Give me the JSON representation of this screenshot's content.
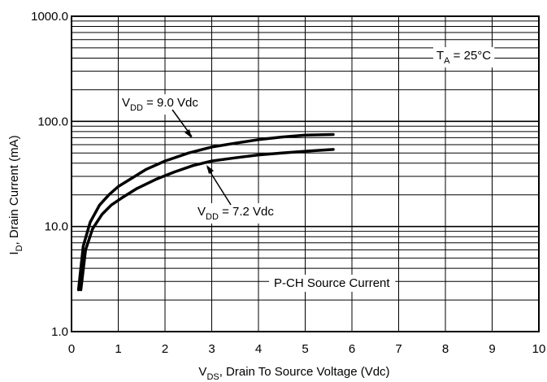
{
  "chart_data": {
    "type": "line",
    "title": "",
    "xlabel": {
      "main": "V",
      "sub": "DS",
      "rest": ", Drain To Source Voltage (Vdc)"
    },
    "ylabel": {
      "main": "I",
      "sub": "D",
      "rest": ", Drain Current (mA)"
    },
    "xlim": [
      0,
      10
    ],
    "ylim": [
      1,
      1000
    ],
    "y_scale": "log",
    "grid": true,
    "x_ticks": [
      "0",
      "1",
      "2",
      "3",
      "4",
      "5",
      "6",
      "7",
      "8",
      "9",
      "10"
    ],
    "y_ticks": [
      {
        "value": 1,
        "label": "1.0"
      },
      {
        "value": 10,
        "label": "10.0"
      },
      {
        "value": 100,
        "label": "100.0"
      },
      {
        "value": 1000,
        "label": "1000.0"
      }
    ],
    "series": [
      {
        "name": "V_DD = 9.0 Vdc",
        "x": [
          0.15,
          0.25,
          0.4,
          0.6,
          0.8,
          1.0,
          1.3,
          1.6,
          2.0,
          2.5,
          3.0,
          3.5,
          4.0,
          4.5,
          5.0,
          5.6
        ],
        "y": [
          2.5,
          6.5,
          11,
          16,
          20,
          24,
          29,
          35,
          42,
          50,
          57,
          62,
          67,
          71,
          74,
          75
        ]
      },
      {
        "name": "V_DD = 7.2 Vdc",
        "x": [
          0.2,
          0.3,
          0.45,
          0.65,
          0.85,
          1.1,
          1.4,
          1.8,
          2.2,
          2.6,
          3.0,
          3.5,
          4.0,
          4.5,
          5.0,
          5.6
        ],
        "y": [
          2.5,
          6.0,
          9.5,
          13,
          16,
          19,
          23,
          28,
          33,
          38,
          42,
          45,
          48,
          50,
          52,
          54
        ]
      }
    ],
    "annotations": {
      "ta": {
        "main": "T",
        "sub": "A",
        "rest": " = 25°C"
      },
      "vdd9": {
        "main": "V",
        "sub": "DD",
        "rest": " = 9.0 Vdc"
      },
      "vdd72": {
        "main": "V",
        "sub": "DD",
        "rest": " = 7.2 Vdc"
      },
      "pch": "P-CH Source Current"
    }
  }
}
